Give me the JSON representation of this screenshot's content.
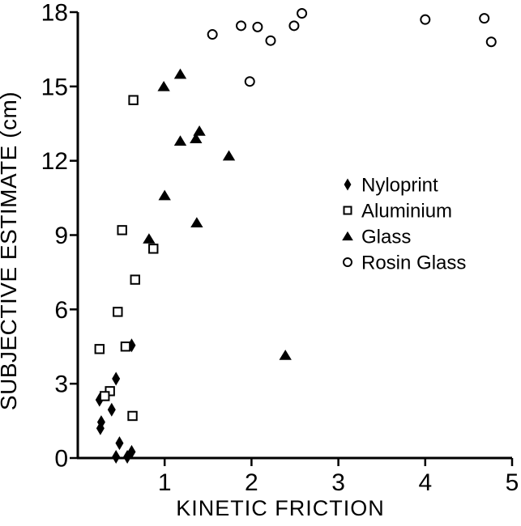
{
  "figure": {
    "background": "#ffffff",
    "ink_color": "#000000"
  },
  "chart_data": {
    "type": "scatter",
    "title": "",
    "xlabel": "KINETIC FRICTION",
    "ylabel": "SUBJECTIVE ESTIMATE (cm)",
    "xlim": [
      0,
      5
    ],
    "ylim": [
      0,
      18
    ],
    "x_ticks": [
      1,
      2,
      3,
      4,
      5
    ],
    "y_ticks": [
      0,
      3,
      6,
      9,
      12,
      15,
      18
    ],
    "grid": false,
    "legend_position": "inside-right-middle",
    "series": [
      {
        "name": "Nyloprint",
        "marker": "filled-diamond",
        "points": [
          [
            0.62,
            4.55
          ],
          [
            0.44,
            3.2
          ],
          [
            0.25,
            2.35
          ],
          [
            0.39,
            1.95
          ],
          [
            0.27,
            1.45
          ],
          [
            0.26,
            1.2
          ],
          [
            0.48,
            0.6
          ],
          [
            0.44,
            0.05
          ],
          [
            0.62,
            0.25
          ],
          [
            0.57,
            0.05
          ]
        ]
      },
      {
        "name": "Aluminium",
        "marker": "open-square",
        "points": [
          [
            0.64,
            14.45
          ],
          [
            0.51,
            9.2
          ],
          [
            0.87,
            8.45
          ],
          [
            0.66,
            7.2
          ],
          [
            0.46,
            5.9
          ],
          [
            0.25,
            4.4
          ],
          [
            0.55,
            4.5
          ],
          [
            0.37,
            2.7
          ],
          [
            0.31,
            2.5
          ],
          [
            0.63,
            1.7
          ]
        ]
      },
      {
        "name": "Glass",
        "marker": "filled-triangle",
        "points": [
          [
            1.18,
            15.5
          ],
          [
            0.99,
            15.0
          ],
          [
            1.4,
            13.2
          ],
          [
            1.36,
            12.9
          ],
          [
            1.18,
            12.8
          ],
          [
            1.74,
            12.2
          ],
          [
            1.0,
            10.6
          ],
          [
            1.37,
            9.5
          ],
          [
            0.82,
            8.85
          ],
          [
            2.39,
            4.15
          ]
        ]
      },
      {
        "name": "Rosin Glass",
        "marker": "open-circle",
        "points": [
          [
            1.55,
            17.1
          ],
          [
            1.88,
            17.45
          ],
          [
            2.07,
            17.4
          ],
          [
            2.22,
            16.85
          ],
          [
            2.49,
            17.45
          ],
          [
            2.58,
            17.95
          ],
          [
            1.98,
            15.2
          ],
          [
            4.0,
            17.7
          ],
          [
            4.68,
            17.75
          ],
          [
            4.76,
            16.8
          ]
        ]
      }
    ]
  }
}
